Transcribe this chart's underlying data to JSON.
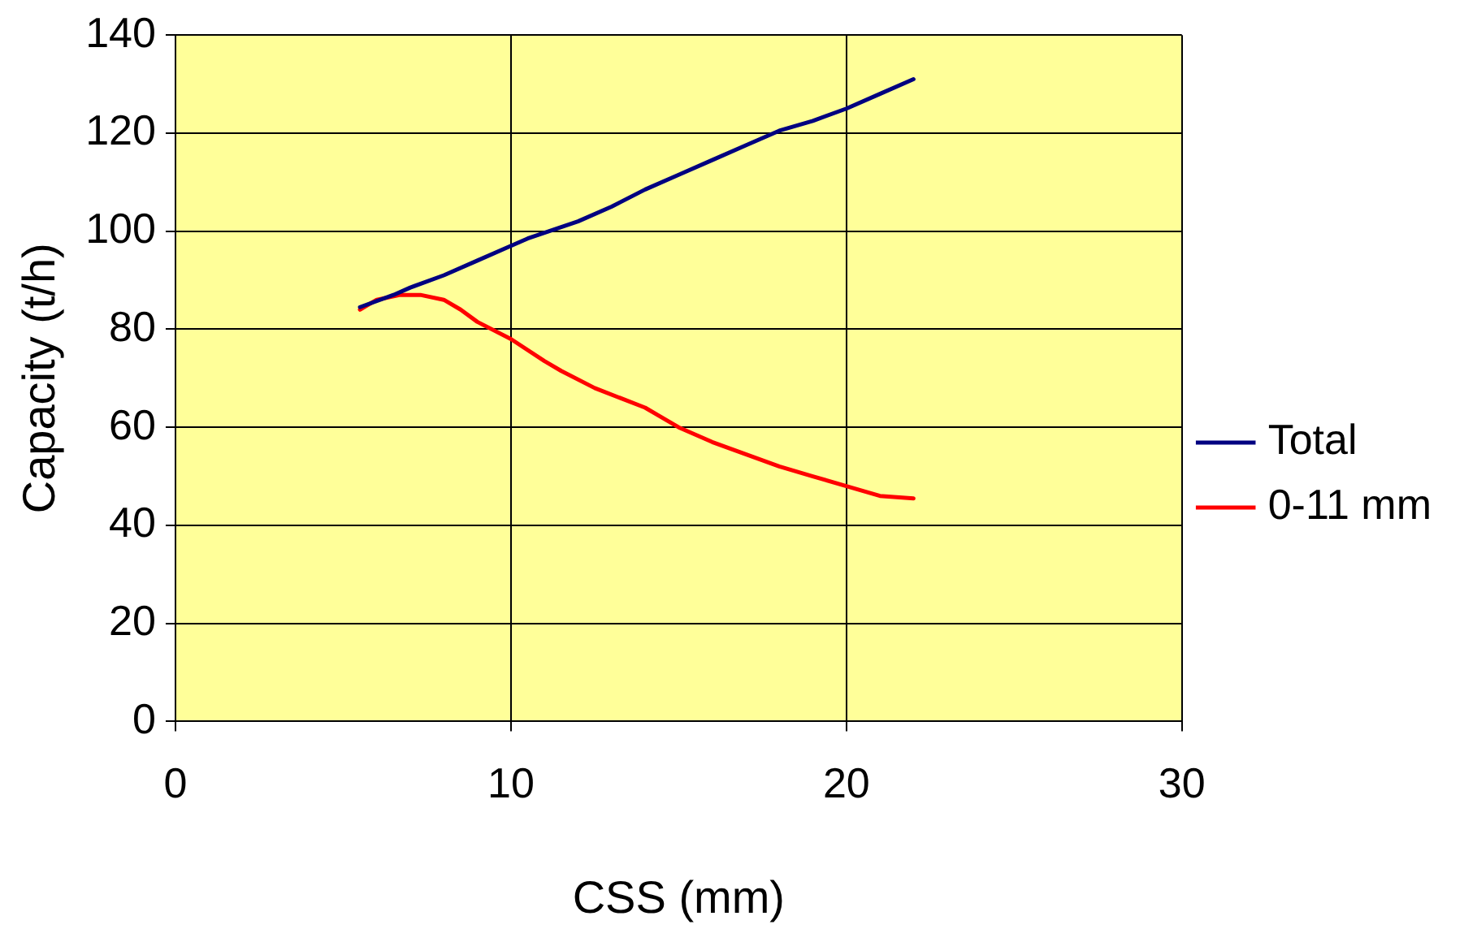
{
  "chart_data": {
    "type": "line",
    "xlabel": "CSS (mm)",
    "ylabel": "Capacity (t/h)",
    "xlim": [
      0,
      30
    ],
    "xticks": [
      0,
      10,
      20,
      30
    ],
    "ylim": [
      0,
      140
    ],
    "yticks": [
      0,
      20,
      40,
      60,
      80,
      100,
      120,
      140
    ],
    "grid": true,
    "legend": "right",
    "marker": "none",
    "line_style": "solid",
    "series": [
      {
        "name": "Total",
        "color": "#000080",
        "x": [
          5.5,
          6.5,
          7,
          8,
          9,
          10,
          10.5,
          12,
          13,
          14,
          15,
          16,
          17,
          18,
          19,
          20,
          21,
          22
        ],
        "values": [
          84.5,
          87,
          88.5,
          91,
          94,
          97,
          98.5,
          102,
          105,
          108.5,
          111.5,
          114.5,
          117.5,
          120.5,
          122.5,
          125,
          128,
          131
        ]
      },
      {
        "name": "0-11 mm",
        "color": "#ff0000",
        "x": [
          5.5,
          6,
          6.7,
          7.3,
          8,
          8.5,
          9,
          10,
          11,
          11.5,
          12.5,
          14,
          15,
          16,
          17,
          18,
          19,
          20,
          21,
          22
        ],
        "values": [
          84,
          86,
          87,
          87,
          86,
          84,
          81.5,
          78,
          73.5,
          71.5,
          68,
          64,
          60,
          57,
          54.5,
          52,
          50,
          48,
          46,
          45.5
        ]
      }
    ]
  }
}
